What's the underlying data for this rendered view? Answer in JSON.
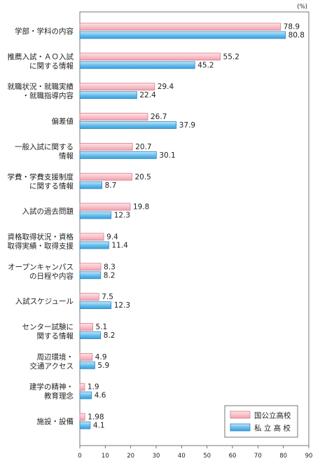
{
  "chart_data": {
    "type": "bar",
    "orientation": "horizontal",
    "unit_label": "(%)",
    "xlim": [
      0,
      90
    ],
    "xticks": [
      0,
      10,
      20,
      30,
      40,
      50,
      60,
      70,
      80,
      90
    ],
    "grid": false,
    "legend_position": "bottom-right",
    "categories": [
      [
        "学部・学科の内容"
      ],
      [
        "推薦入試・ＡＯ入試",
        "に関する情報"
      ],
      [
        "就職状況・就職実績",
        "・就職指導内容"
      ],
      [
        "偏差値"
      ],
      [
        "一般入試に関する",
        "情報"
      ],
      [
        "学費・学費支援制度",
        "に関する情報"
      ],
      [
        "入試の過去問題"
      ],
      [
        "資格取得状況・資格",
        "取得実績・取得支援"
      ],
      [
        "オープンキャンパス",
        "の日程や内容"
      ],
      [
        "入試スケジュール"
      ],
      [
        "センター試験に",
        "関する情報"
      ],
      [
        "周辺環境・",
        "交通アクセス"
      ],
      [
        "建学の精神・",
        "教育理念"
      ],
      [
        "施設・設備"
      ]
    ],
    "series": [
      {
        "name": "国公立高校",
        "color": "#f6b6bf",
        "values": [
          78.9,
          55.2,
          29.4,
          26.7,
          20.7,
          20.5,
          19.8,
          9.4,
          8.3,
          7.5,
          5.1,
          4.9,
          1.9,
          1.98
        ]
      },
      {
        "name": "私 立 高 校",
        "color": "#5ab3e6",
        "values": [
          80.8,
          45.2,
          22.4,
          37.9,
          30.1,
          8.7,
          12.3,
          11.4,
          8.2,
          12.3,
          8.2,
          5.9,
          4.6,
          4.1
        ]
      }
    ]
  }
}
